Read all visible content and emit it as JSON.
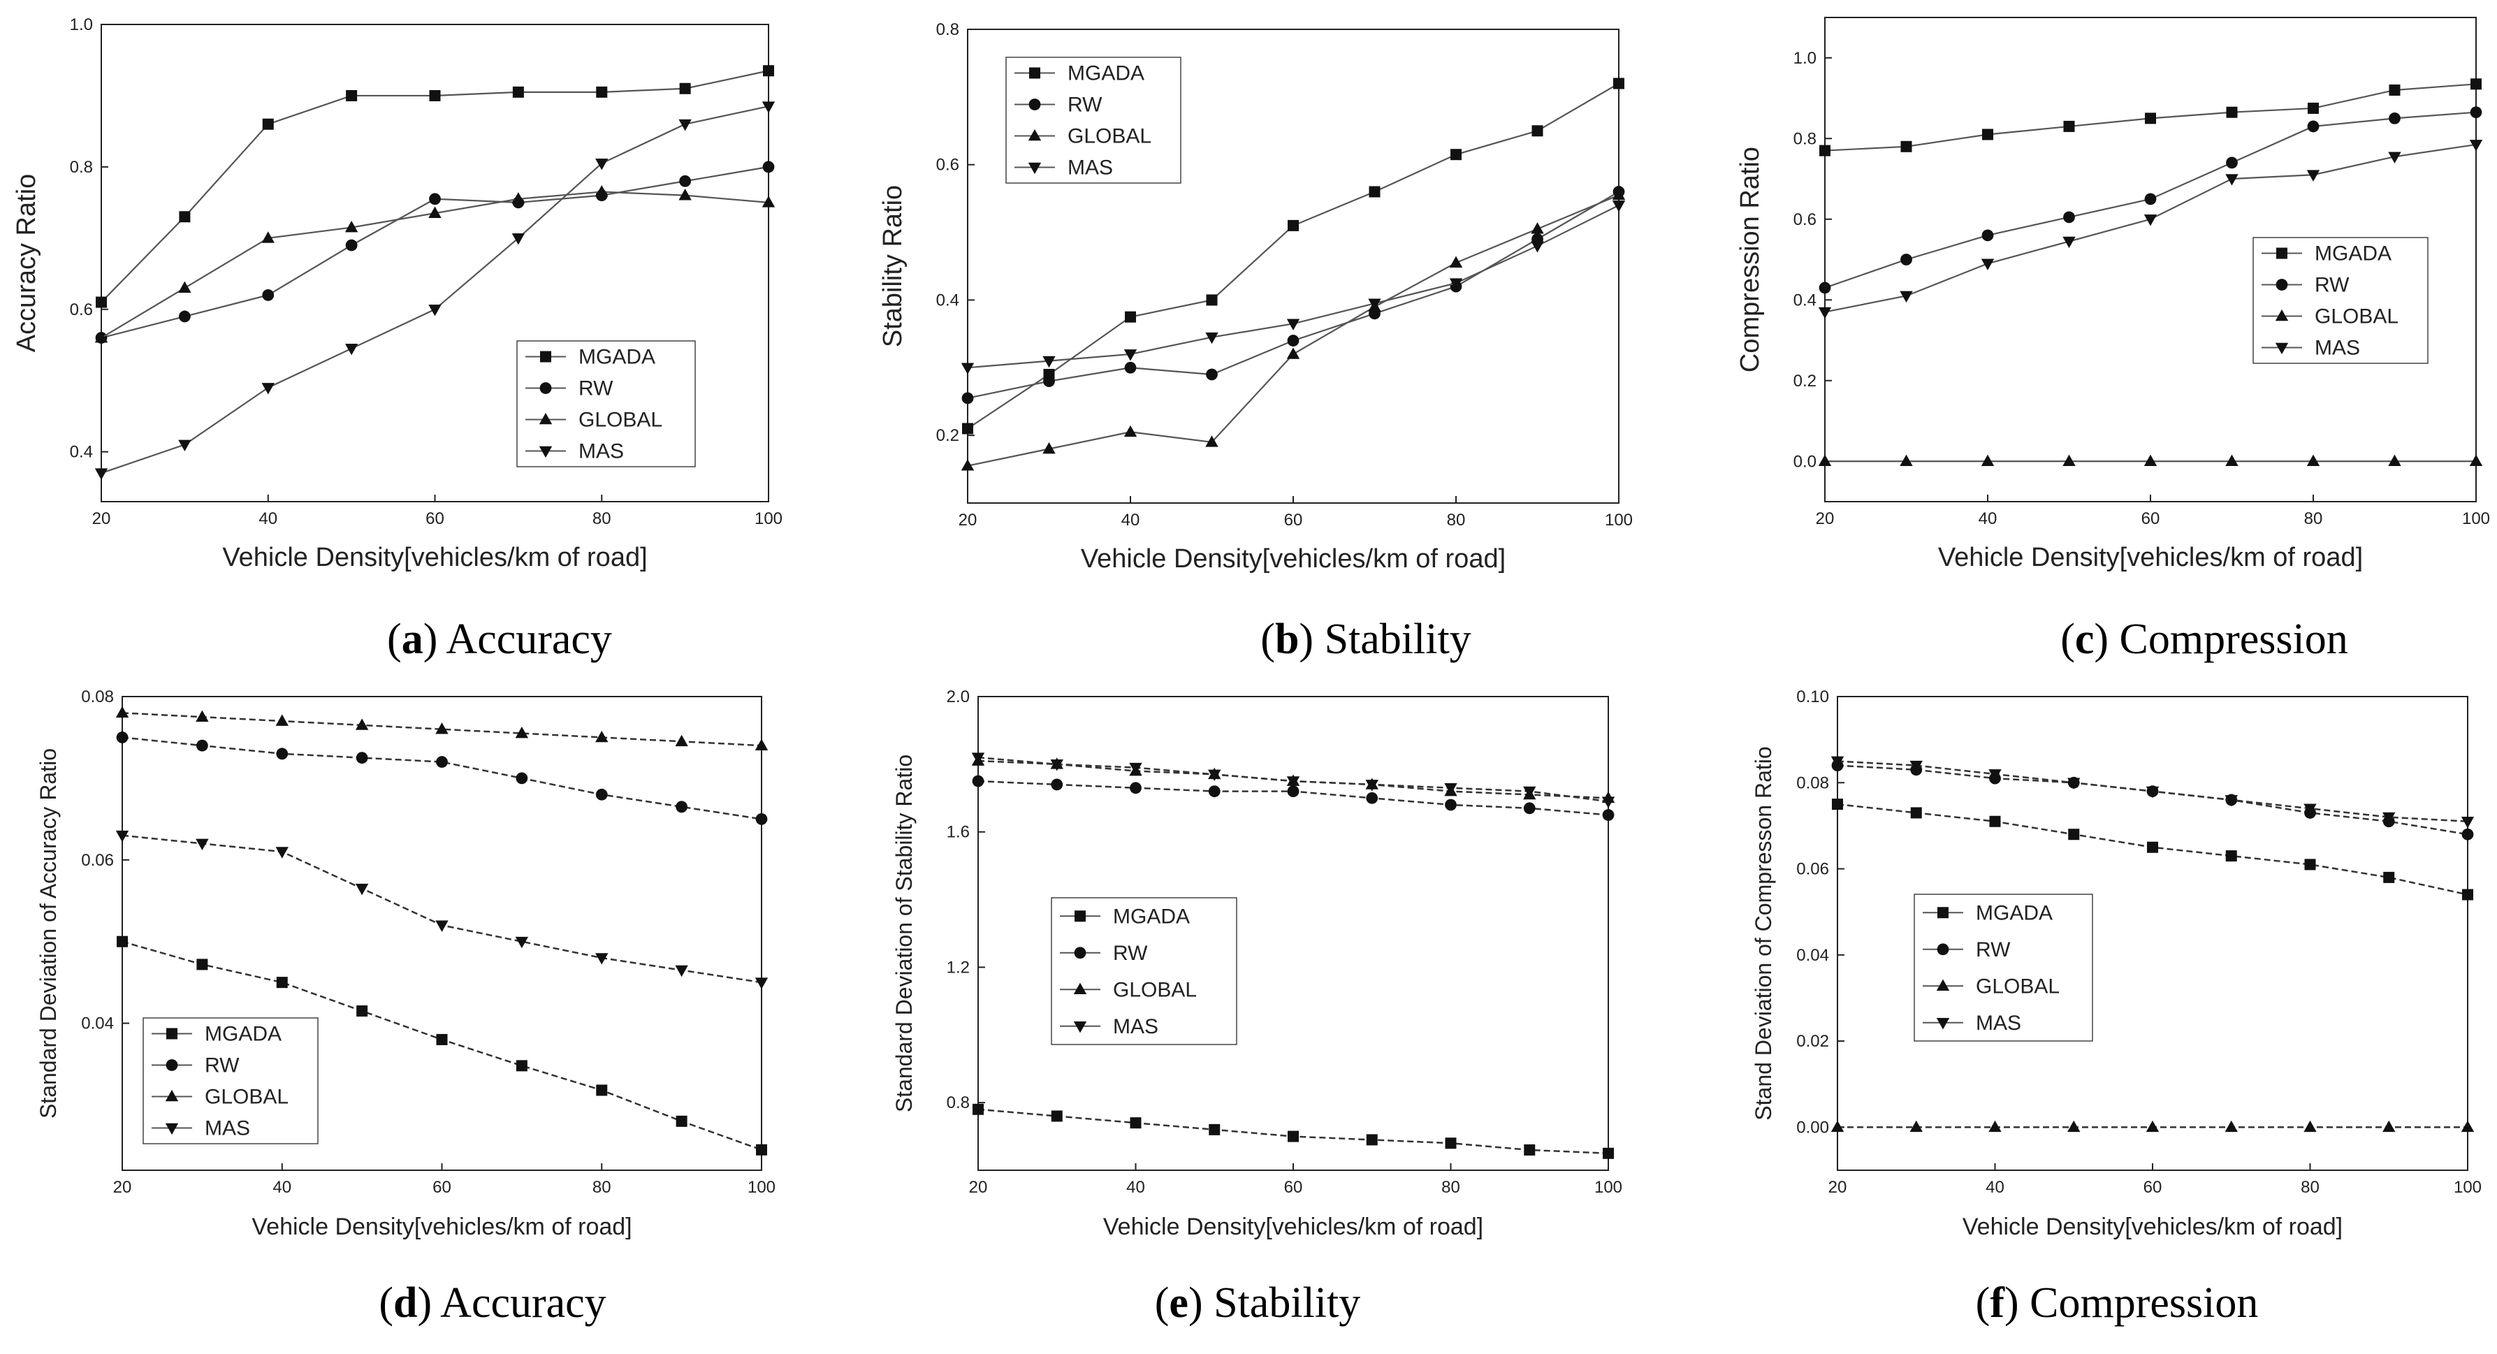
{
  "chart_data": [
    {
      "type": "line",
      "caption": {
        "letter": "a",
        "text": "Accuracy"
      },
      "xlabel": "Vehicle Density[vehicles/km of road]",
      "ylabel": "Accuracy Ratio",
      "xlim": [
        20,
        100
      ],
      "ylim": [
        0.33,
        1.0
      ],
      "xticks": [
        "20",
        "40",
        "60",
        "80",
        "100"
      ],
      "yticks": [
        "0.4",
        "0.6",
        "0.8",
        "1.0"
      ],
      "legend_position": "lower-right",
      "x": [
        20,
        30,
        40,
        50,
        60,
        70,
        80,
        90,
        100
      ],
      "series": [
        {
          "name": "MGADA",
          "marker": "square",
          "values": [
            0.61,
            0.73,
            0.86,
            0.9,
            0.9,
            0.905,
            0.905,
            0.91,
            0.935
          ]
        },
        {
          "name": "RW",
          "marker": "circle",
          "values": [
            0.56,
            0.59,
            0.62,
            0.69,
            0.755,
            0.75,
            0.76,
            0.78,
            0.8
          ]
        },
        {
          "name": "GLOBAL",
          "marker": "triangle-up",
          "values": [
            0.56,
            0.63,
            0.7,
            0.715,
            0.735,
            0.755,
            0.765,
            0.76,
            0.75
          ]
        },
        {
          "name": "MAS",
          "marker": "triangle-down",
          "values": [
            0.37,
            0.41,
            0.49,
            0.545,
            0.6,
            0.7,
            0.805,
            0.86,
            0.885
          ]
        }
      ]
    },
    {
      "type": "line",
      "caption": {
        "letter": "b",
        "text": "Stability"
      },
      "xlabel": "Vehicle Density[vehicles/km of road]",
      "ylabel": "Stability Ratio",
      "xlim": [
        20,
        100
      ],
      "ylim": [
        0.1,
        0.8
      ],
      "xticks": [
        "20",
        "40",
        "60",
        "80",
        "100"
      ],
      "yticks": [
        "0.2",
        "0.4",
        "0.6",
        "0.8"
      ],
      "legend_position": "upper-left",
      "x": [
        20,
        30,
        40,
        50,
        60,
        70,
        80,
        90,
        100
      ],
      "series": [
        {
          "name": "MGADA",
          "marker": "square",
          "values": [
            0.21,
            0.29,
            0.375,
            0.4,
            0.51,
            0.56,
            0.615,
            0.65,
            0.72
          ]
        },
        {
          "name": "RW",
          "marker": "circle",
          "values": [
            0.255,
            0.28,
            0.3,
            0.29,
            0.34,
            0.38,
            0.42,
            0.49,
            0.56
          ]
        },
        {
          "name": "GLOBAL",
          "marker": "triangle-up",
          "values": [
            0.155,
            0.18,
            0.205,
            0.19,
            0.32,
            0.39,
            0.455,
            0.505,
            0.555
          ]
        },
        {
          "name": "MAS",
          "marker": "triangle-down",
          "values": [
            0.3,
            0.31,
            0.32,
            0.345,
            0.365,
            0.395,
            0.425,
            0.48,
            0.54
          ]
        }
      ]
    },
    {
      "type": "line",
      "caption": {
        "letter": "c",
        "text": "Compression"
      },
      "xlabel": "Vehicle Density[vehicles/km of road]",
      "ylabel": "Compression Ratio",
      "xlim": [
        20,
        100
      ],
      "ylim": [
        -0.1,
        1.1
      ],
      "xticks": [
        "20",
        "40",
        "60",
        "80",
        "100"
      ],
      "yticks": [
        "0.0",
        "0.2",
        "0.4",
        "0.6",
        "0.8",
        "1.0"
      ],
      "legend_position": "right",
      "x": [
        20,
        30,
        40,
        50,
        60,
        70,
        80,
        90,
        100
      ],
      "series": [
        {
          "name": "MGADA",
          "marker": "square",
          "values": [
            0.77,
            0.78,
            0.81,
            0.83,
            0.85,
            0.865,
            0.875,
            0.92,
            0.935
          ]
        },
        {
          "name": "RW",
          "marker": "circle",
          "values": [
            0.43,
            0.5,
            0.56,
            0.605,
            0.65,
            0.74,
            0.83,
            0.85,
            0.865
          ]
        },
        {
          "name": "GLOBAL",
          "marker": "triangle-up",
          "values": [
            0.0,
            0.0,
            0.0,
            0.0,
            0.0,
            0.0,
            0.0,
            0.0,
            0.0
          ]
        },
        {
          "name": "MAS",
          "marker": "triangle-down",
          "values": [
            0.37,
            0.41,
            0.49,
            0.545,
            0.6,
            0.7,
            0.71,
            0.755,
            0.785
          ]
        }
      ]
    },
    {
      "type": "line",
      "caption": {
        "letter": "d",
        "text": "Accuracy"
      },
      "xlabel": "Vehicle Density[vehicles/km of road]",
      "ylabel": "Standard Deviation of Accuracy Ratio",
      "xlim": [
        20,
        100
      ],
      "ylim": [
        0.022,
        0.08
      ],
      "xticks": [
        "20",
        "40",
        "60",
        "80",
        "100"
      ],
      "yticks": [
        "0.04",
        "0.06",
        "0.08"
      ],
      "legend_position": "lower-left",
      "x": [
        20,
        30,
        40,
        50,
        60,
        70,
        80,
        90,
        100
      ],
      "series": [
        {
          "name": "MGADA",
          "marker": "square",
          "values": [
            0.05,
            0.0472,
            0.045,
            0.0415,
            0.038,
            0.0348,
            0.0318,
            0.028,
            0.0245
          ]
        },
        {
          "name": "RW",
          "marker": "circle",
          "values": [
            0.075,
            0.074,
            0.073,
            0.0725,
            0.072,
            0.07,
            0.068,
            0.0665,
            0.065
          ]
        },
        {
          "name": "GLOBAL",
          "marker": "triangle-up",
          "values": [
            0.078,
            0.0775,
            0.077,
            0.0765,
            0.076,
            0.0755,
            0.075,
            0.0745,
            0.074
          ]
        },
        {
          "name": "MAS",
          "marker": "triangle-down",
          "values": [
            0.063,
            0.062,
            0.061,
            0.0565,
            0.052,
            0.05,
            0.048,
            0.0465,
            0.045
          ]
        }
      ]
    },
    {
      "type": "line",
      "caption": {
        "letter": "e",
        "text": "Stability"
      },
      "xlabel": "Vehicle Density[vehicles/km of road]",
      "ylabel": "Standard Deviation of Stability Ratio",
      "xlim": [
        20,
        100
      ],
      "ylim": [
        0.6,
        2.0
      ],
      "xticks": [
        "20",
        "40",
        "60",
        "80",
        "100"
      ],
      "yticks": [
        "0.8",
        "1.2",
        "1.6",
        "2.0"
      ],
      "legend_position": "center-left",
      "x": [
        20,
        30,
        40,
        50,
        60,
        70,
        80,
        90,
        100
      ],
      "series": [
        {
          "name": "MGADA",
          "marker": "square",
          "values": [
            0.78,
            0.76,
            0.74,
            0.72,
            0.7,
            0.69,
            0.68,
            0.66,
            0.65
          ]
        },
        {
          "name": "RW",
          "marker": "circle",
          "values": [
            1.75,
            1.74,
            1.73,
            1.72,
            1.72,
            1.7,
            1.68,
            1.67,
            1.65
          ]
        },
        {
          "name": "GLOBAL",
          "marker": "triangle-up",
          "values": [
            1.81,
            1.8,
            1.78,
            1.77,
            1.75,
            1.74,
            1.72,
            1.71,
            1.7
          ]
        },
        {
          "name": "MAS",
          "marker": "triangle-down",
          "values": [
            1.82,
            1.8,
            1.79,
            1.77,
            1.75,
            1.74,
            1.73,
            1.72,
            1.69
          ]
        }
      ]
    },
    {
      "type": "line",
      "caption": {
        "letter": "f",
        "text": "Compression"
      },
      "xlabel": "Vehicle Density[vehicles/km of road]",
      "ylabel": "Stand Deviation of Compresson Ratio",
      "xlim": [
        20,
        100
      ],
      "ylim": [
        -0.01,
        0.1
      ],
      "xticks": [
        "20",
        "40",
        "60",
        "80",
        "100"
      ],
      "yticks": [
        "0.00",
        "0.02",
        "0.04",
        "0.06",
        "0.08",
        "0.10"
      ],
      "legend_position": "center-left",
      "x": [
        20,
        30,
        40,
        50,
        60,
        70,
        80,
        90,
        100
      ],
      "series": [
        {
          "name": "MGADA",
          "marker": "square",
          "values": [
            0.075,
            0.073,
            0.071,
            0.068,
            0.065,
            0.063,
            0.061,
            0.058,
            0.054
          ]
        },
        {
          "name": "RW",
          "marker": "circle",
          "values": [
            0.084,
            0.083,
            0.081,
            0.08,
            0.078,
            0.076,
            0.073,
            0.071,
            0.068
          ]
        },
        {
          "name": "GLOBAL",
          "marker": "triangle-up",
          "values": [
            0.0,
            0.0,
            0.0,
            0.0,
            0.0,
            0.0,
            0.0,
            0.0,
            0.0
          ]
        },
        {
          "name": "MAS",
          "marker": "triangle-down",
          "values": [
            0.085,
            0.084,
            0.082,
            0.08,
            0.078,
            0.076,
            0.074,
            0.072,
            0.071
          ]
        }
      ]
    }
  ]
}
